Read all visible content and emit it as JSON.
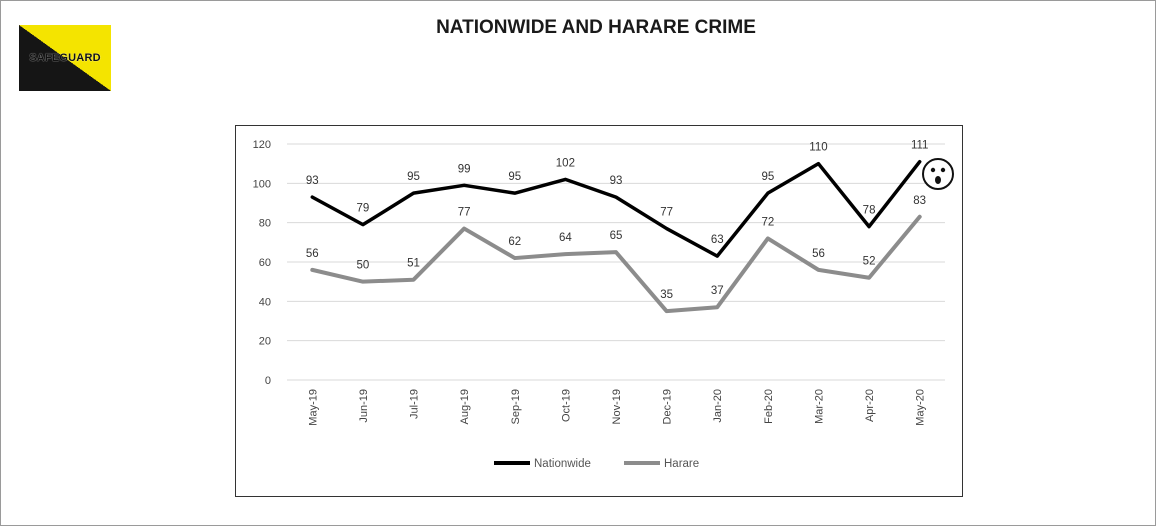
{
  "title": "NATIONWIDE AND HARARE CRIME",
  "logo": {
    "text": "SAFEGUARD",
    "colors": {
      "yellow": "#f4e400",
      "black": "#151515"
    }
  },
  "chart_data": {
    "type": "line",
    "title": "NATIONWIDE AND HARARE CRIME",
    "categories": [
      "May-19",
      "Jun-19",
      "Jul-19",
      "Aug-19",
      "Sep-19",
      "Oct-19",
      "Nov-19",
      "Dec-19",
      "Jan-20",
      "Feb-20",
      "Mar-20",
      "Apr-20",
      "May-20"
    ],
    "series": [
      {
        "name": "Nationwide",
        "color": "#000000",
        "values": [
          93,
          79,
          95,
          99,
          95,
          102,
          93,
          77,
          63,
          95,
          110,
          78,
          111
        ]
      },
      {
        "name": "Harare",
        "color": "#8c8c8c",
        "values": [
          56,
          50,
          51,
          77,
          62,
          64,
          65,
          35,
          37,
          72,
          56,
          52,
          83
        ]
      }
    ],
    "ylim": [
      0,
      120
    ],
    "yticks": [
      0,
      20,
      40,
      60,
      80,
      100,
      120
    ],
    "grid": "horizontal",
    "data_labels": true,
    "legend": "bottom",
    "annotation": "shocked-face-emoji",
    "xlabel": "",
    "ylabel": ""
  }
}
